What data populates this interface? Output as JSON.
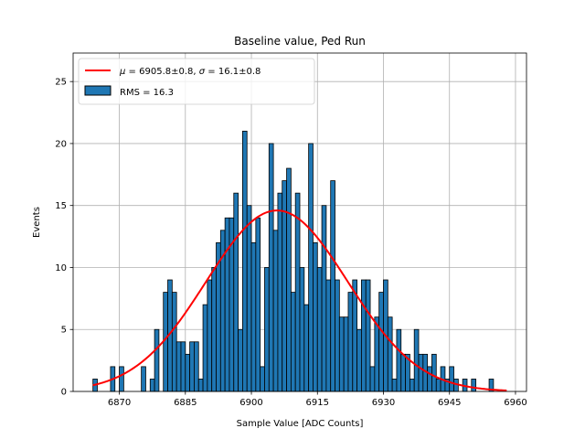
{
  "chart_data": {
    "type": "bar",
    "title": "Baseline value, Ped Run",
    "xlabel": "Sample Value [ADC Counts]",
    "ylabel": "Events",
    "xlim": [
      6859.5,
      6962.5
    ],
    "ylim": [
      0,
      27.3
    ],
    "xticks": [
      6870,
      6885,
      6900,
      6915,
      6930,
      6945,
      6960
    ],
    "yticks": [
      0,
      5,
      10,
      15,
      20,
      25
    ],
    "grid": true,
    "legend_position": "top-left",
    "histogram": {
      "name": "RMS = 16.3",
      "bin_start": 6864,
      "bin_width": 1,
      "counts": [
        1,
        0,
        0,
        0,
        2,
        0,
        2,
        0,
        0,
        0,
        0,
        2,
        0,
        1,
        5,
        0,
        8,
        9,
        8,
        4,
        4,
        3,
        4,
        4,
        1,
        7,
        9,
        10,
        12,
        13,
        14,
        14,
        16,
        5,
        21,
        15,
        12,
        14,
        2,
        10,
        20,
        13,
        16,
        17,
        18,
        8,
        16,
        10,
        7,
        20,
        12,
        10,
        15,
        9,
        17,
        9,
        6,
        6,
        8,
        9,
        5,
        9,
        9,
        2,
        6,
        8,
        9,
        6,
        1,
        5,
        3,
        3,
        1,
        5,
        3,
        3,
        2,
        3,
        1,
        2,
        1,
        2,
        1,
        0,
        1,
        0,
        1,
        0,
        0,
        0,
        1,
        0,
        0,
        0,
        0,
        0,
        0,
        0,
        0,
        0
      ],
      "color": "#1f77b4",
      "edge_color": "#000000"
    },
    "fit": {
      "label_mu": "6905.8±0.8",
      "label_sigma": "16.1±0.8",
      "mu": 6905.8,
      "sigma": 16.1,
      "amplitude": 14.6,
      "x_range": [
        6864,
        6958
      ],
      "color": "#ff0000"
    }
  }
}
